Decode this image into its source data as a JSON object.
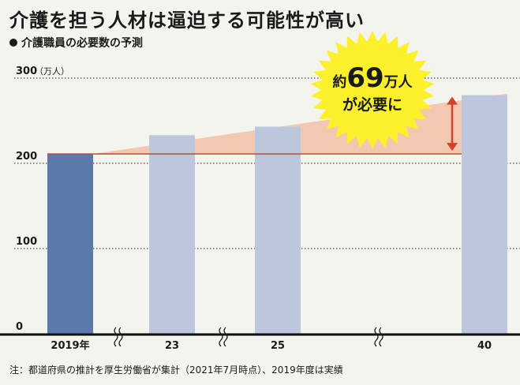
{
  "title": "介護を担う人材は逼迫する可能性が高い",
  "subtitle": "介護職員の必要数の予測",
  "note": "注：都道府県の推計を厚生労働省が集計（2021年7月時点）、2019年度は実績",
  "colors": {
    "background": "#f4f4ee",
    "actual_bar": "#5b7aab",
    "projected_bar": "#bcc6dc",
    "baseline_line": "#d8402c",
    "gap_fill": "#f3c7b2",
    "arrow": "#d8402c",
    "burst": "#fbf02a"
  },
  "callout": {
    "prefix": "約",
    "number": "69",
    "suffix": "万人",
    "line2": "が必要に"
  },
  "chart_data": {
    "type": "bar",
    "categories": [
      "2019年",
      "23",
      "25",
      "40"
    ],
    "values": [
      211,
      233,
      243,
      280
    ],
    "bar_kinds": [
      "actual",
      "projected",
      "projected",
      "projected"
    ],
    "ylim": [
      0,
      300
    ],
    "yticks": [
      0,
      100,
      200,
      300
    ],
    "ytick_labels": [
      "0",
      "100",
      "200",
      "300"
    ],
    "yunit": "（万人）",
    "axis_breaks": true,
    "grid": true,
    "annotation": {
      "text": "約69万人が必要に",
      "from_value": 211,
      "to_value": 280
    }
  }
}
